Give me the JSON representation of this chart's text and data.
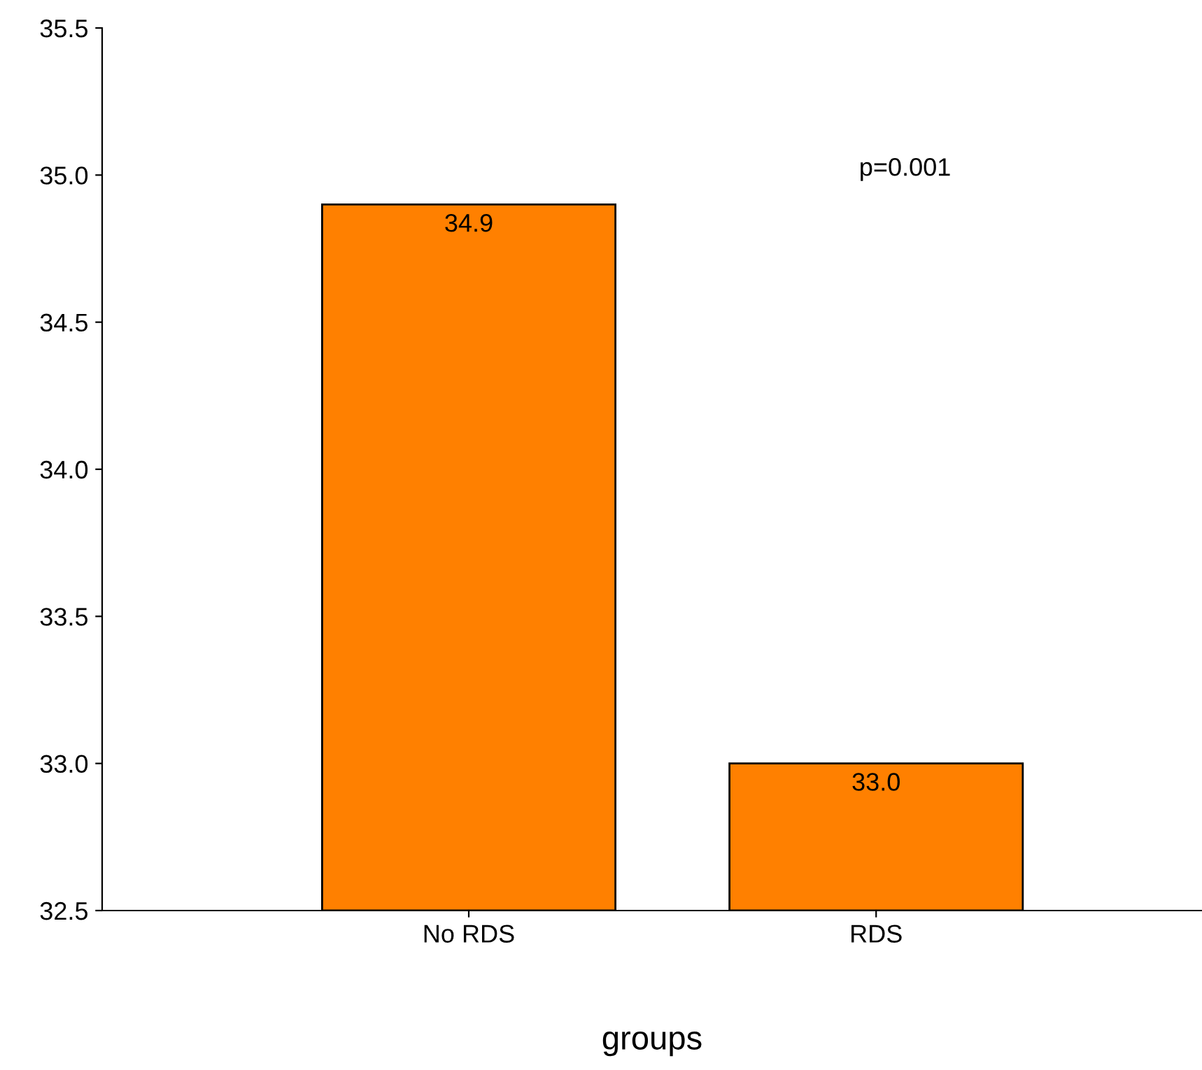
{
  "chart_data": {
    "type": "bar",
    "xlabel": "groups",
    "categories": [
      "No RDS",
      "RDS"
    ],
    "values": [
      34.9,
      33.0
    ],
    "color": "#ff8000",
    "value_labels": [
      "34.9",
      "33.0"
    ],
    "ylim": [
      32.5,
      35.5
    ],
    "yticks": [
      {
        "value": 32.5,
        "label": "32.5"
      },
      {
        "value": 33.0,
        "label": "33.0"
      },
      {
        "value": 33.5,
        "label": "33.5"
      },
      {
        "value": 34.0,
        "label": "34.0"
      },
      {
        "value": 34.5,
        "label": "34.5"
      },
      {
        "value": 35.0,
        "label": "35.0"
      },
      {
        "value": 35.5,
        "label": "35.5"
      }
    ],
    "annotations": [
      "p=0.001"
    ],
    "grid": false
  }
}
